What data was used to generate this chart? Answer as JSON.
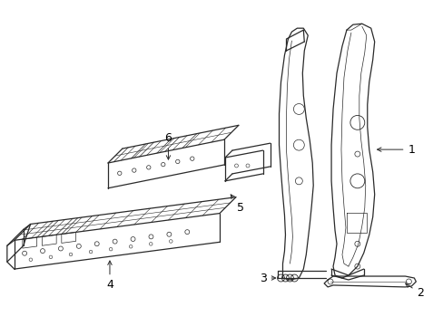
{
  "background_color": "#ffffff",
  "line_color": "#2a2a2a",
  "label_color": "#000000",
  "figsize": [
    4.89,
    3.6
  ],
  "dpi": 100,
  "lw_main": 0.9,
  "lw_detail": 0.5,
  "lw_thin": 0.4
}
